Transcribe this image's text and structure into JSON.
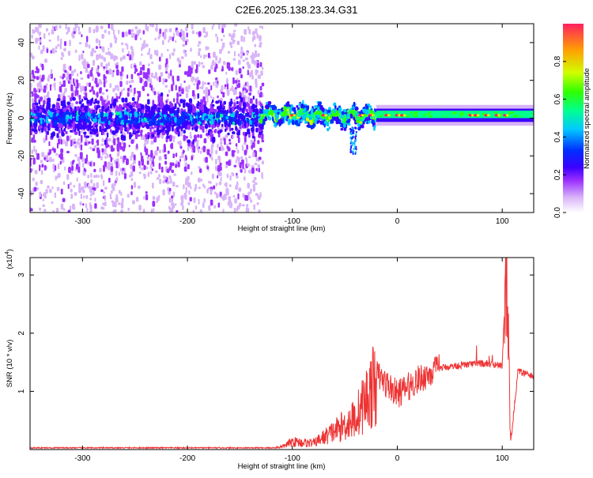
{
  "title": "C2E6.2025.138.23.34.G31",
  "chart_data": [
    {
      "type": "heatmap",
      "xlabel": "Height of straight line (km)",
      "ylabel": "Frequency (Hz)",
      "xlim": [
        -350,
        130
      ],
      "ylim": [
        -50,
        50
      ],
      "xticks": [
        -300,
        -200,
        -100,
        0,
        100
      ],
      "xtick_labels": [
        "-300",
        "-200",
        "-100",
        "0",
        "100"
      ],
      "yticks": [
        -40,
        -20,
        0,
        20,
        40
      ],
      "ytick_labels": [
        "-40",
        "-20",
        "0",
        "20",
        "40"
      ],
      "colorbar": {
        "label": "Normalized spectral amplitude",
        "range": [
          0,
          1
        ],
        "ticks": [
          0.0,
          0.2,
          0.4,
          0.6,
          0.8
        ],
        "tick_labels": [
          "0.0",
          "0.2",
          "0.4",
          "0.6",
          "0.8"
        ],
        "colormap": [
          "#ffffff",
          "#d8b4f8",
          "#9b30ff",
          "#3a00ff",
          "#0030ff",
          "#00c8ff",
          "#00ff90",
          "#30ff00",
          "#d0ff00",
          "#ffa000",
          "#ff2060"
        ]
      },
      "description_bands": [
        {
          "x_range": [
            -350,
            -130
          ],
          "freq_spread": [
            -45,
            45
          ],
          "core_spread": [
            -10,
            10
          ],
          "level": 0.2
        },
        {
          "x_range": [
            -130,
            130
          ],
          "freq_spread": [
            -5,
            7
          ],
          "core_spread": [
            -2,
            4
          ],
          "level": 0.6
        }
      ]
    },
    {
      "type": "line",
      "xlabel": "Height of straight line (km)",
      "ylabel": "SNR (10 * v/v)",
      "y_multiplier": "(x10^4)",
      "y_multiplier_base": "(x10",
      "y_multiplier_exp": "4",
      "y_multiplier_close": ")",
      "xlim": [
        -350,
        130
      ],
      "ylim": [
        0,
        3.3
      ],
      "xticks": [
        -300,
        -200,
        -100,
        0,
        100
      ],
      "xtick_labels": [
        "-300",
        "-200",
        "-100",
        "0",
        "100"
      ],
      "yticks": [
        1,
        2,
        3
      ],
      "ytick_labels": [
        "1",
        "2",
        "3"
      ],
      "series": [
        {
          "color": "#ee3333",
          "key_points": [
            {
              "x": -350,
              "y": 0.02
            },
            {
              "x": -250,
              "y": 0.02
            },
            {
              "x": -150,
              "y": 0.02
            },
            {
              "x": -110,
              "y": 0.05
            },
            {
              "x": -100,
              "y": 0.15
            },
            {
              "x": -80,
              "y": 0.12
            },
            {
              "x": -60,
              "y": 0.35
            },
            {
              "x": -40,
              "y": 0.6
            },
            {
              "x": -20,
              "y": 1.3
            },
            {
              "x": 0,
              "y": 0.95
            },
            {
              "x": 20,
              "y": 1.2
            },
            {
              "x": 40,
              "y": 1.4
            },
            {
              "x": 60,
              "y": 1.45
            },
            {
              "x": 80,
              "y": 1.48
            },
            {
              "x": 100,
              "y": 1.45
            },
            {
              "x": 104,
              "y": 3.25
            },
            {
              "x": 108,
              "y": 0.1
            },
            {
              "x": 115,
              "y": 1.35
            },
            {
              "x": 130,
              "y": 1.25
            }
          ]
        }
      ]
    }
  ]
}
